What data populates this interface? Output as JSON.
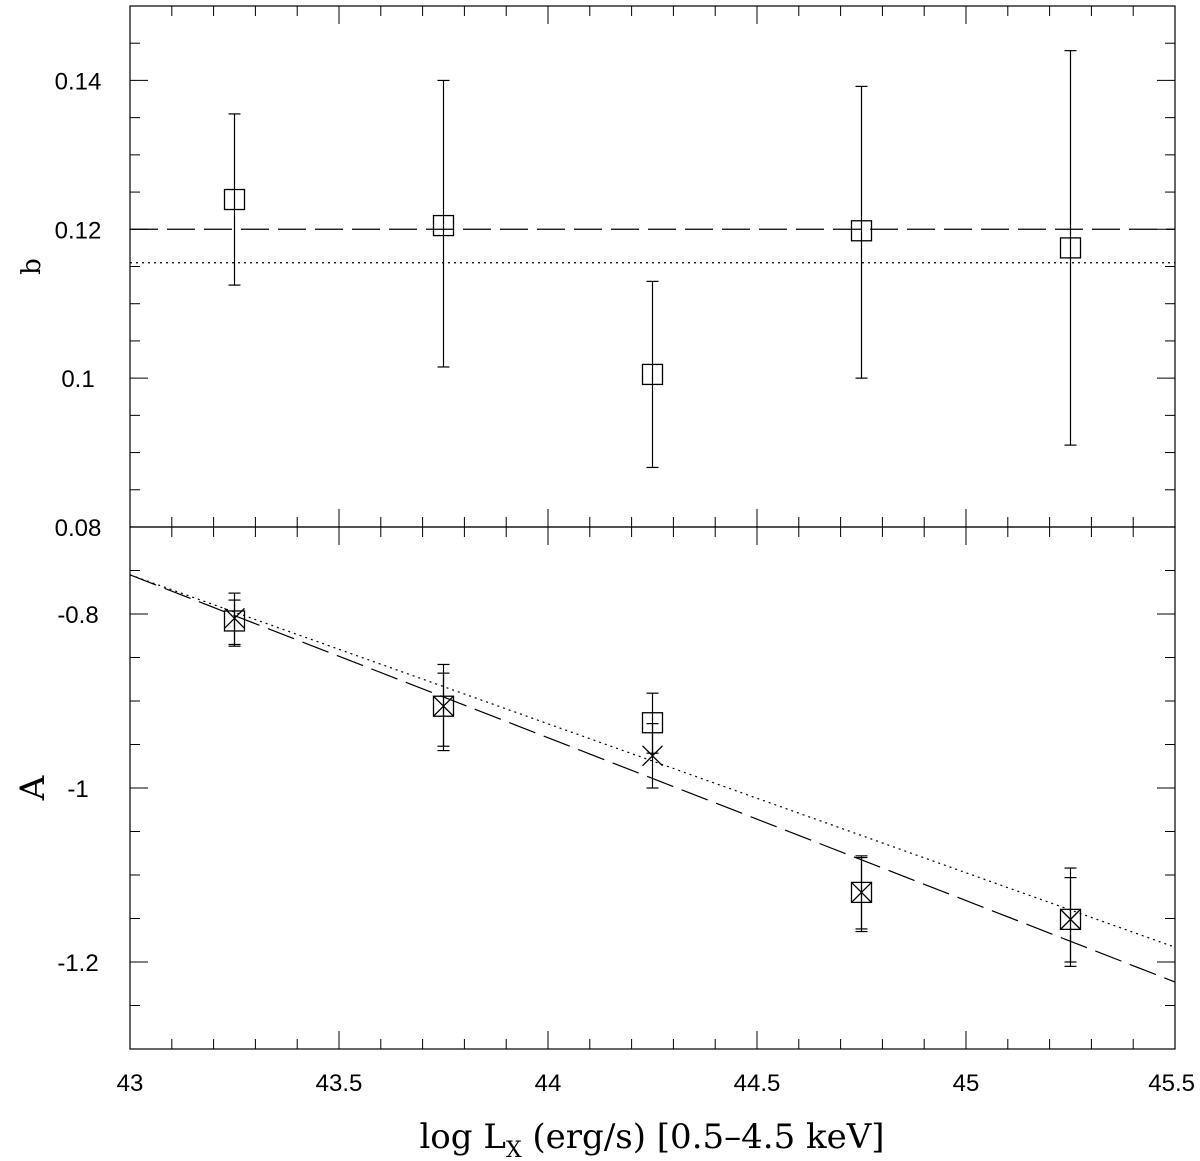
{
  "chart_data": {
    "type": "scatter",
    "xlabel": "log L",
    "xlabel_sub": "X",
    "xlabel_suffix": " (erg/s) [0.5–4.5 keV]",
    "xlim": [
      43,
      45.5
    ],
    "xticks": [
      {
        "value": 43,
        "label": "43"
      },
      {
        "value": 43.5,
        "label": "43.5"
      },
      {
        "value": 44,
        "label": "44"
      },
      {
        "value": 44.5,
        "label": "44.5"
      },
      {
        "value": 45,
        "label": "45"
      },
      {
        "value": 45.5,
        "label": "45.5"
      }
    ],
    "panels": [
      {
        "id": "top",
        "ylabel": "b",
        "ylim": [
          0.08,
          0.15
        ],
        "yticks": [
          {
            "value": 0.08,
            "label": "0.08"
          },
          {
            "value": 0.1,
            "label": "0.1"
          },
          {
            "value": 0.12,
            "label": "0.12"
          },
          {
            "value": 0.14,
            "label": "0.14"
          }
        ],
        "series": [
          {
            "marker": "square",
            "points": [
              {
                "x": 43.25,
                "y": 0.124,
                "ylo": 0.1125,
                "yhi": 0.1355
              },
              {
                "x": 43.75,
                "y": 0.1205,
                "ylo": 0.1015,
                "yhi": 0.14
              },
              {
                "x": 44.25,
                "y": 0.1005,
                "ylo": 0.088,
                "yhi": 0.113
              },
              {
                "x": 44.75,
                "y": 0.1198,
                "ylo": 0.1,
                "yhi": 0.1392
              },
              {
                "x": 45.25,
                "y": 0.1175,
                "ylo": 0.091,
                "yhi": 0.144
              }
            ]
          }
        ],
        "lines": [
          {
            "style": "dashed",
            "points": [
              [
                43,
                0.12
              ],
              [
                45.5,
                0.12
              ]
            ]
          },
          {
            "style": "dotted",
            "points": [
              [
                43,
                0.1155
              ],
              [
                45.5,
                0.1155
              ]
            ]
          }
        ]
      },
      {
        "id": "bottom",
        "ylabel": "A",
        "ylim": [
          -1.3,
          -0.7
        ],
        "yticks": [
          {
            "value": -0.8,
            "label": "-0.8"
          },
          {
            "value": -1,
            "label": "-1"
          },
          {
            "value": -1.2,
            "label": "-1.2"
          }
        ],
        "series": [
          {
            "marker": "square",
            "points": [
              {
                "x": 43.25,
                "y": -0.808,
                "ylo": -0.837,
                "yhi": -0.776
              },
              {
                "x": 43.75,
                "y": -0.906,
                "ylo": -0.957,
                "yhi": -0.858
              },
              {
                "x": 44.25,
                "y": -0.925,
                "ylo": -0.96,
                "yhi": -0.891
              },
              {
                "x": 44.75,
                "y": -1.12,
                "ylo": -1.162,
                "yhi": -1.078
              },
              {
                "x": 45.25,
                "y": -1.151,
                "ylo": -1.2,
                "yhi": -1.103
              }
            ]
          },
          {
            "marker": "cross",
            "points": [
              {
                "x": 43.25,
                "y": -0.805,
                "ylo": -0.835,
                "yhi": -0.784
              },
              {
                "x": 43.75,
                "y": -0.906,
                "ylo": -0.952,
                "yhi": -0.868
              },
              {
                "x": 44.25,
                "y": -0.963,
                "ylo": -1.0,
                "yhi": -0.926
              },
              {
                "x": 44.75,
                "y": -1.12,
                "ylo": -1.165,
                "yhi": -1.08
              },
              {
                "x": 45.25,
                "y": -1.151,
                "ylo": -1.205,
                "yhi": -1.092
              }
            ]
          }
        ],
        "lines": [
          {
            "style": "dashed",
            "points": [
              [
                43,
                -0.755
              ],
              [
                45.5,
                -1.223
              ]
            ]
          },
          {
            "style": "dotted",
            "points": [
              [
                43,
                -0.755
              ],
              [
                45.5,
                -1.183
              ]
            ]
          }
        ]
      }
    ]
  }
}
